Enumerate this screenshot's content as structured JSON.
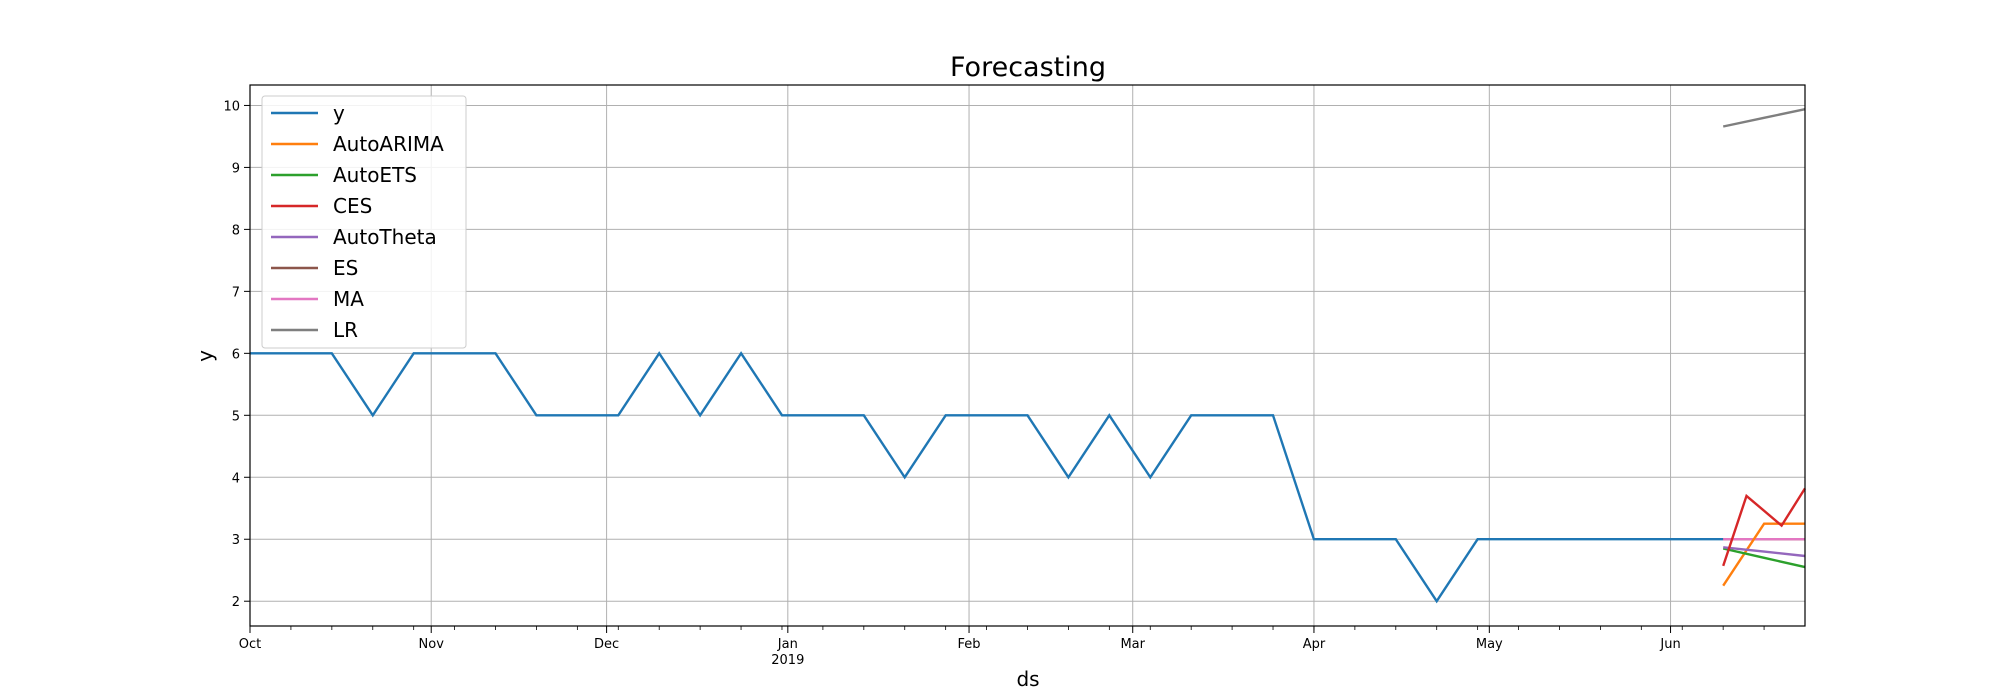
{
  "chart_data": {
    "type": "line",
    "title": "Forecasting",
    "xlabel": "ds",
    "ylabel": "y",
    "grid": true,
    "legend_position": "top-left",
    "x_range": [
      "2018-10-01",
      "2019-06-24"
    ],
    "ylim": [
      1.6,
      10.33
    ],
    "y_ticks": [
      2,
      3,
      4,
      5,
      6,
      7,
      8,
      9,
      10
    ],
    "x_major_ticks": [
      {
        "date": "2018-10-01",
        "label": "Oct",
        "sublabel": ""
      },
      {
        "date": "2018-11-01",
        "label": "Nov",
        "sublabel": ""
      },
      {
        "date": "2018-12-01",
        "label": "Dec",
        "sublabel": ""
      },
      {
        "date": "2019-01-01",
        "label": "Jan",
        "sublabel": "2019"
      },
      {
        "date": "2019-02-01",
        "label": "Feb",
        "sublabel": ""
      },
      {
        "date": "2019-03-01",
        "label": "Mar",
        "sublabel": ""
      },
      {
        "date": "2019-04-01",
        "label": "Apr",
        "sublabel": ""
      },
      {
        "date": "2019-05-01",
        "label": "May",
        "sublabel": ""
      },
      {
        "date": "2019-06-01",
        "label": "Jun",
        "sublabel": ""
      }
    ],
    "series": [
      {
        "name": "y",
        "color": "#1f77b4",
        "x": [
          "2018-10-01",
          "2018-10-08",
          "2018-10-15",
          "2018-10-22",
          "2018-10-29",
          "2018-11-05",
          "2018-11-12",
          "2018-11-19",
          "2018-11-26",
          "2018-12-03",
          "2018-12-10",
          "2018-12-17",
          "2018-12-24",
          "2018-12-31",
          "2019-01-07",
          "2019-01-14",
          "2019-01-21",
          "2019-01-28",
          "2019-02-04",
          "2019-02-11",
          "2019-02-18",
          "2019-02-25",
          "2019-03-04",
          "2019-03-11",
          "2019-03-18",
          "2019-03-25",
          "2019-04-01",
          "2019-04-08",
          "2019-04-15",
          "2019-04-22",
          "2019-04-29",
          "2019-05-06",
          "2019-05-13",
          "2019-05-20",
          "2019-05-27",
          "2019-06-03",
          "2019-06-10"
        ],
        "y": [
          6,
          6,
          6,
          5,
          6,
          6,
          6,
          5,
          5,
          5,
          6,
          5,
          6,
          5,
          5,
          5,
          4,
          5,
          5,
          5,
          4,
          5,
          4,
          5,
          5,
          5,
          3,
          3,
          3,
          2,
          3,
          3,
          3,
          3,
          3,
          3,
          3
        ]
      },
      {
        "name": "AutoARIMA",
        "color": "#ff7f0e",
        "x": [
          "2019-06-10",
          "2019-06-17",
          "2019-06-24"
        ],
        "y": [
          2.25,
          3.25,
          3.25
        ]
      },
      {
        "name": "AutoETS",
        "color": "#2ca02c",
        "x": [
          "2019-06-10",
          "2019-06-17",
          "2019-06-24"
        ],
        "y": [
          2.85,
          2.7,
          2.55
        ]
      },
      {
        "name": "CES",
        "color": "#d62728",
        "x": [
          "2019-06-10",
          "2019-06-14",
          "2019-06-20",
          "2019-06-24"
        ],
        "y": [
          2.57,
          3.7,
          3.22,
          3.82
        ]
      },
      {
        "name": "AutoTheta",
        "color": "#9467bd",
        "x": [
          "2019-06-10",
          "2019-06-17",
          "2019-06-24"
        ],
        "y": [
          2.87,
          2.8,
          2.73
        ]
      },
      {
        "name": "ES",
        "color": "#8c564b",
        "x": [
          "2019-06-10",
          "2019-06-17",
          "2019-06-24"
        ],
        "y": [
          3.0,
          3.0,
          3.0
        ]
      },
      {
        "name": "MA",
        "color": "#e377c2",
        "x": [
          "2019-06-10",
          "2019-06-17",
          "2019-06-24"
        ],
        "y": [
          3.0,
          3.0,
          3.0
        ]
      },
      {
        "name": "LR",
        "color": "#7f7f7f",
        "x": [
          "2019-06-10",
          "2019-06-17",
          "2019-06-24"
        ],
        "y": [
          9.66,
          9.8,
          9.94
        ]
      }
    ]
  }
}
